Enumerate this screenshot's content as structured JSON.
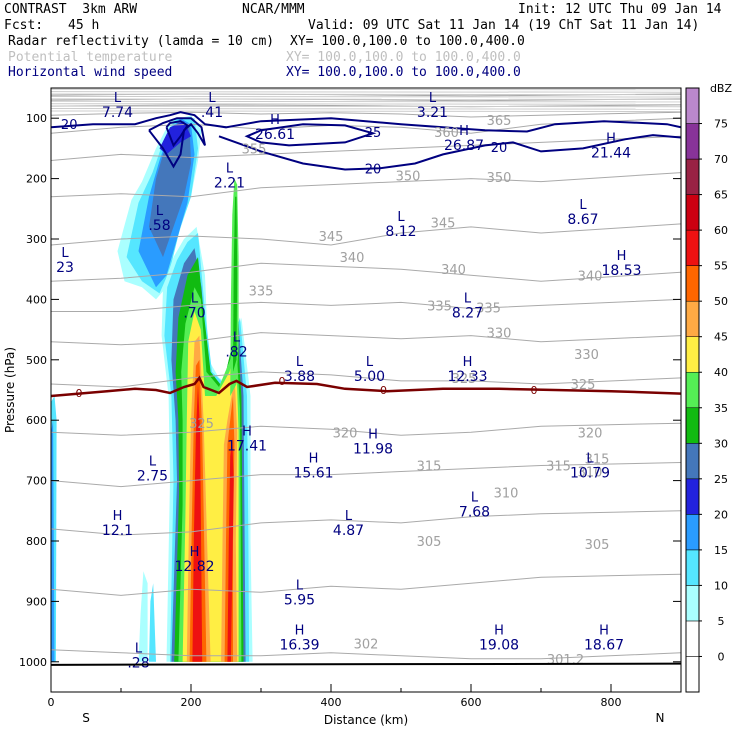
{
  "header": {
    "model": "CONTRAST  3km ARW",
    "center": "NCAR/MMM",
    "init": "Init: 12 UTC Thu 09 Jan 14",
    "fcst_label": "Fcst:",
    "fcst_value": "45 h",
    "valid": "Valid: 09 UTC Sat 11 Jan 14 (19 ChT Sat 11 Jan 14)",
    "fields": [
      {
        "name": "Radar reflectivity (lamda = 10 cm)",
        "xy": "XY= 100.0,100.0 to 100.0,400.0",
        "color": "#000000"
      },
      {
        "name": "Potential temperature",
        "xy": "XY= 100.0,100.0 to 100.0,400.0",
        "color": "#bfbfbf"
      },
      {
        "name": "Horizontal wind speed",
        "xy": "XY= 100.0,100.0 to 100.0,400.0",
        "color": "#000080"
      }
    ]
  },
  "chart_data": {
    "type": "cross-section",
    "xlabel": "Distance (km)",
    "ylabel": "Pressure (hPa)",
    "xlim": [
      0,
      900
    ],
    "ylim": [
      1050,
      50
    ],
    "x_ticks": [
      0,
      200,
      400,
      600,
      800
    ],
    "y_ticks": [
      100,
      200,
      300,
      400,
      500,
      600,
      700,
      800,
      900,
      1000
    ],
    "x_end_labels": {
      "left": "S",
      "right": "N"
    },
    "colorbar": {
      "unit": "dBZ",
      "levels": [
        0,
        5,
        10,
        15,
        20,
        25,
        30,
        35,
        40,
        45,
        50,
        55,
        60,
        65,
        70,
        75
      ],
      "colors": [
        "#ffffff",
        "#aaffff",
        "#55e6ff",
        "#2a9cff",
        "#2222dd",
        "#4477bb",
        "#11bb11",
        "#55ee55",
        "#ffee44",
        "#ffaa44",
        "#ff6600",
        "#ee1111",
        "#cc0011",
        "#992244",
        "#883399",
        "#bb88cc"
      ]
    },
    "theta_labels": [
      {
        "x": 565,
        "p": 128,
        "v": "360"
      },
      {
        "x": 640,
        "p": 108,
        "v": "365"
      },
      {
        "x": 290,
        "p": 155,
        "v": "355"
      },
      {
        "x": 510,
        "p": 200,
        "v": "350"
      },
      {
        "x": 640,
        "p": 202,
        "v": "350"
      },
      {
        "x": 560,
        "p": 278,
        "v": "345"
      },
      {
        "x": 400,
        "p": 300,
        "v": "345"
      },
      {
        "x": 430,
        "p": 335,
        "v": "340"
      },
      {
        "x": 575,
        "p": 355,
        "v": "340"
      },
      {
        "x": 770,
        "p": 365,
        "v": "340"
      },
      {
        "x": 300,
        "p": 390,
        "v": "335"
      },
      {
        "x": 555,
        "p": 415,
        "v": "335"
      },
      {
        "x": 625,
        "p": 418,
        "v": "335"
      },
      {
        "x": 640,
        "p": 460,
        "v": "330"
      },
      {
        "x": 765,
        "p": 495,
        "v": "330"
      },
      {
        "x": 590,
        "p": 535,
        "v": "325"
      },
      {
        "x": 760,
        "p": 545,
        "v": "325"
      },
      {
        "x": 215,
        "p": 610,
        "v": "325"
      },
      {
        "x": 420,
        "p": 625,
        "v": "320"
      },
      {
        "x": 770,
        "p": 625,
        "v": "320"
      },
      {
        "x": 540,
        "p": 680,
        "v": "315"
      },
      {
        "x": 725,
        "p": 680,
        "v": "315"
      },
      {
        "x": 780,
        "p": 668,
        "v": "315"
      },
      {
        "x": 650,
        "p": 725,
        "v": "310"
      },
      {
        "x": 770,
        "p": 690,
        "v": "310"
      },
      {
        "x": 540,
        "p": 805,
        "v": "305"
      },
      {
        "x": 780,
        "p": 810,
        "v": "305"
      },
      {
        "x": 450,
        "p": 975,
        "v": "302"
      },
      {
        "x": 735,
        "p": 1000,
        "v": "301.2"
      }
    ],
    "wind_labels": [
      {
        "x": 26,
        "p": 110,
        "v": "20"
      },
      {
        "x": 460,
        "p": 123,
        "v": "25"
      },
      {
        "x": 640,
        "p": 148,
        "v": "20"
      },
      {
        "x": 460,
        "p": 183,
        "v": "20"
      }
    ],
    "zero_contour_labels": [
      {
        "x": 40,
        "p": 555,
        "v": "0"
      },
      {
        "x": 330,
        "p": 535,
        "v": "0"
      },
      {
        "x": 475,
        "p": 550,
        "v": "0"
      },
      {
        "x": 690,
        "p": 550,
        "v": "0"
      }
    ],
    "extrema": [
      {
        "type": "L",
        "x": 95,
        "p": 73,
        "v": "7.74"
      },
      {
        "type": "L",
        "x": 230,
        "p": 73,
        "v": ".41"
      },
      {
        "type": "L",
        "x": 545,
        "p": 73,
        "v": "3.21"
      },
      {
        "type": "H",
        "x": 320,
        "p": 110,
        "v": "26.61"
      },
      {
        "type": "H",
        "x": 590,
        "p": 128,
        "v": "26.87"
      },
      {
        "type": "H",
        "x": 800,
        "p": 140,
        "v": "21.44"
      },
      {
        "type": "L",
        "x": 255,
        "p": 190,
        "v": "2.21"
      },
      {
        "type": "L",
        "x": 155,
        "p": 260,
        "v": ".58"
      },
      {
        "type": "L",
        "x": 500,
        "p": 270,
        "v": "8.12"
      },
      {
        "type": "L",
        "x": 760,
        "p": 250,
        "v": "8.67"
      },
      {
        "type": "H",
        "x": 815,
        "p": 335,
        "v": "18.53"
      },
      {
        "type": "L",
        "x": 205,
        "p": 405,
        "v": ".70"
      },
      {
        "type": "L",
        "x": 595,
        "p": 405,
        "v": "8.27"
      },
      {
        "type": "L",
        "x": 265,
        "p": 470,
        "v": ".82"
      },
      {
        "type": "L",
        "x": 355,
        "p": 510,
        "v": "3.88"
      },
      {
        "type": "L",
        "x": 455,
        "p": 510,
        "v": "5.00"
      },
      {
        "type": "H",
        "x": 595,
        "p": 510,
        "v": "12.33"
      },
      {
        "type": "H",
        "x": 280,
        "p": 625,
        "v": "17.41"
      },
      {
        "type": "H",
        "x": 460,
        "p": 630,
        "v": "11.98"
      },
      {
        "type": "L",
        "x": 145,
        "p": 675,
        "v": "2.75"
      },
      {
        "type": "H",
        "x": 375,
        "p": 670,
        "v": "15.61"
      },
      {
        "type": "L",
        "x": 770,
        "p": 670,
        "v": "10.79"
      },
      {
        "type": "L",
        "x": 605,
        "p": 735,
        "v": "7.68"
      },
      {
        "type": "H",
        "x": 95,
        "p": 765,
        "v": "12.1"
      },
      {
        "type": "L",
        "x": 425,
        "p": 765,
        "v": "4.87"
      },
      {
        "type": "H",
        "x": 205,
        "p": 825,
        "v": "12.82"
      },
      {
        "type": "L",
        "x": 355,
        "p": 880,
        "v": "5.95"
      },
      {
        "type": "H",
        "x": 355,
        "p": 955,
        "v": "16.39"
      },
      {
        "type": "H",
        "x": 640,
        "p": 955,
        "v": "19.08"
      },
      {
        "type": "H",
        "x": 790,
        "p": 955,
        "v": "18.67"
      },
      {
        "type": "L",
        "x": 125,
        "p": 985,
        "v": ".28"
      },
      {
        "type": "L",
        "x": 20,
        "p": 330,
        "v": "23"
      }
    ]
  }
}
